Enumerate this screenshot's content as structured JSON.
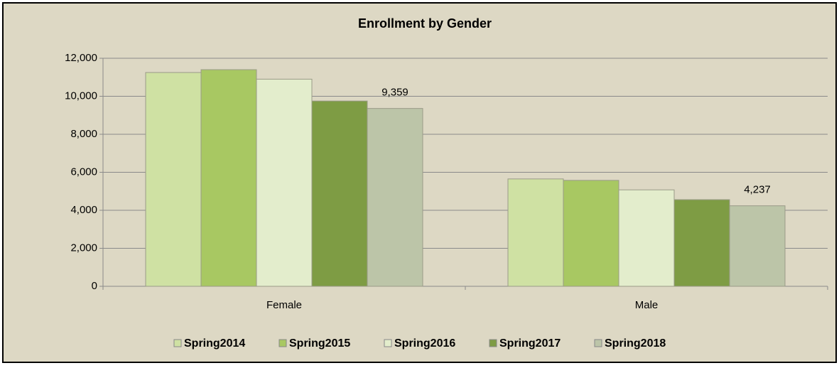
{
  "chart_data": {
    "type": "bar",
    "title": "Enrollment by Gender",
    "categories": [
      "Female",
      "Male"
    ],
    "series": [
      {
        "name": "Spring2014",
        "color": "#cfe1a3",
        "values": [
          11250,
          5650
        ]
      },
      {
        "name": "Spring2015",
        "color": "#a8c862",
        "values": [
          11400,
          5575
        ]
      },
      {
        "name": "Spring2016",
        "color": "#e3edcc",
        "values": [
          10900,
          5075
        ]
      },
      {
        "name": "Spring2017",
        "color": "#7e9c44",
        "values": [
          9750,
          4560
        ]
      },
      {
        "name": "Spring2018",
        "color": "#bcc5a8",
        "values": [
          9359,
          4237
        ],
        "value_labels": [
          "9,359",
          "4,237"
        ]
      }
    ],
    "ylim": [
      0,
      12000
    ],
    "yticks": [
      0,
      {
        "value": 2000,
        "label": "2,000"
      },
      {
        "value": 4000,
        "label": "4,000"
      },
      {
        "value": 6000,
        "label": "6,000"
      },
      {
        "value": 8000,
        "label": "8,000"
      },
      {
        "value": 10000,
        "label": "10,000"
      },
      {
        "value": 12000,
        "label": "12,000"
      }
    ],
    "grid": true,
    "legend": "bottom"
  }
}
